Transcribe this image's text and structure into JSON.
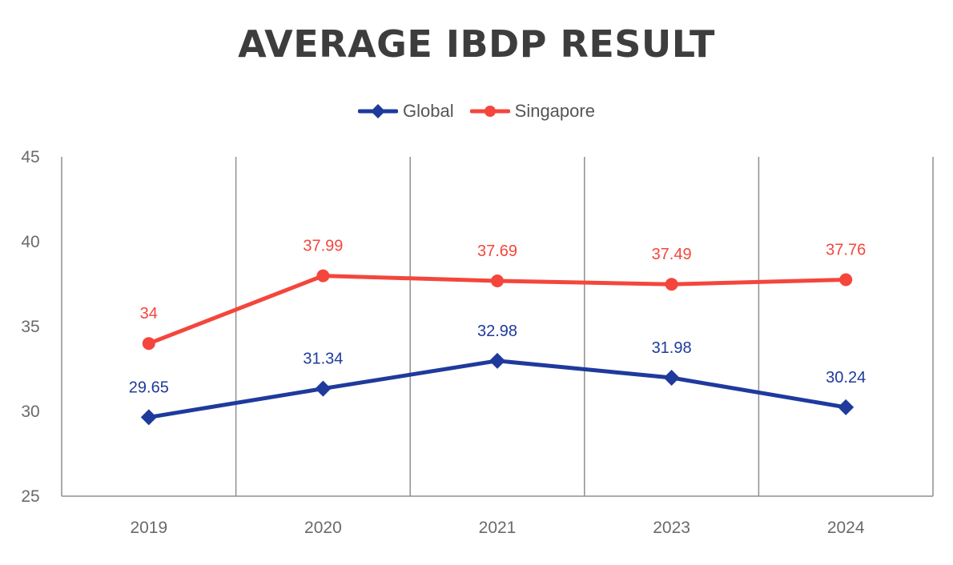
{
  "chart_data": {
    "type": "line",
    "title": "AVERAGE IBDP RESULT",
    "categories": [
      "2019",
      "2020",
      "2021",
      "2023",
      "2024"
    ],
    "series": [
      {
        "name": "Global",
        "values": [
          29.65,
          31.34,
          32.98,
          31.98,
          30.24
        ],
        "labels": [
          "29.65",
          "31.34",
          "32.98",
          "31.98",
          "30.24"
        ],
        "color": "#1f3a9c",
        "marker": "diamond"
      },
      {
        "name": "Singapore",
        "values": [
          34,
          37.99,
          37.69,
          37.49,
          37.76
        ],
        "labels": [
          "34",
          "37.99",
          "37.69",
          "37.49",
          "37.76"
        ],
        "color": "#f4463c",
        "marker": "circle"
      }
    ],
    "ylim": [
      25,
      45
    ],
    "yticks": [
      "25",
      "30",
      "35",
      "40",
      "45"
    ],
    "xlabel": "",
    "ylabel": "",
    "legend": "top-center",
    "grid": "vertical"
  }
}
